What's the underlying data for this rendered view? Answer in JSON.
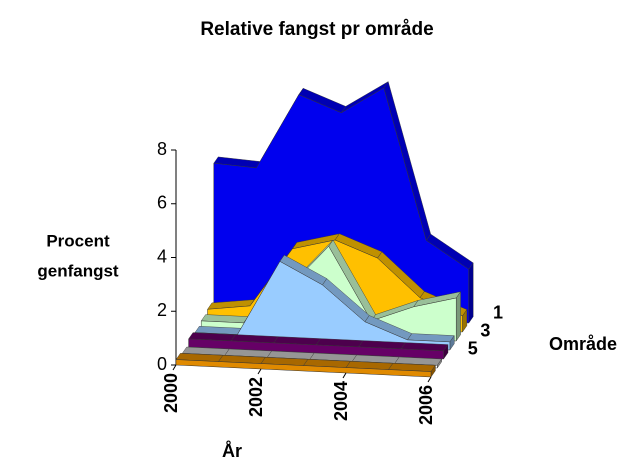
{
  "chart_data": {
    "type": "area3d",
    "title": "Relative fangst pr område",
    "y_label_lines": [
      "Procent",
      "genfangst"
    ],
    "x_label": "År",
    "depth_label": "Område",
    "x": [
      2000,
      2001,
      2002,
      2003,
      2004,
      2005,
      2006
    ],
    "xlim": [
      2000,
      2006
    ],
    "xticks": [
      2000,
      2002,
      2004,
      2006
    ],
    "ylim": [
      0,
      8
    ],
    "yticks": [
      0,
      2,
      4,
      6,
      8
    ],
    "series": [
      {
        "name": "1",
        "color": "#0000ee",
        "values": [
          5.5,
          5.4,
          8.2,
          7.6,
          8.6,
          3.0,
          2.0
        ]
      },
      {
        "name": null,
        "color": "#ffc000",
        "values": [
          0.4,
          0.6,
          2.8,
          3.2,
          2.6,
          1.2,
          0.6
        ]
      },
      {
        "name": "3",
        "color": "#ccffcc",
        "values": [
          0.3,
          0.3,
          1.6,
          3.3,
          0.6,
          1.2,
          1.6
        ]
      },
      {
        "name": null,
        "color": "#99ccff",
        "values": [
          0.2,
          0.2,
          3.0,
          2.2,
          0.9,
          0.3,
          0.3
        ]
      },
      {
        "name": "5",
        "color": "#660066",
        "values": [
          0.3,
          0.3,
          0.3,
          0.3,
          0.3,
          0.3,
          0.3
        ]
      },
      {
        "name": null,
        "color": "#ffffff",
        "values": [
          0.1,
          0.1,
          0.1,
          0.1,
          0.1,
          0.1,
          0.1
        ]
      },
      {
        "name": null,
        "color": "#e08a00",
        "values": [
          0.2,
          0.2,
          0.2,
          0.2,
          0.2,
          0.2,
          0.2
        ]
      }
    ]
  }
}
